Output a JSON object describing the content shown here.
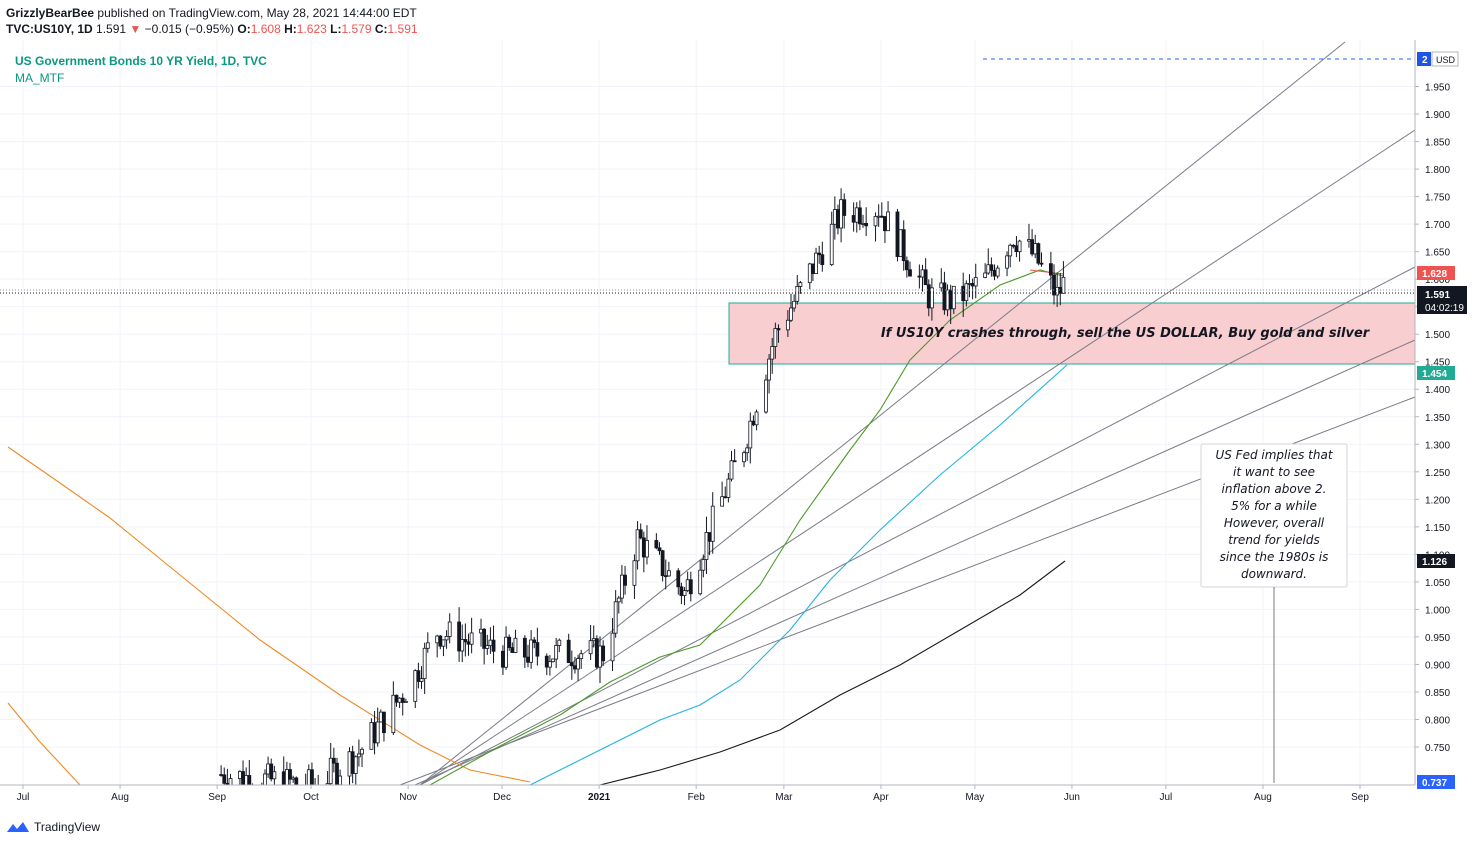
{
  "header": {
    "author": "GrizzlyBearBee",
    "published": "published on TradingView.com, May 28, 2021 14:44:00 EDT",
    "symbol": "TVC:US10Y, 1D",
    "last": "1.591",
    "change_arrow": "▼",
    "change": "−0.015 (−0.95%)",
    "o_label": "O:",
    "o": "1.608",
    "h_label": "H:",
    "h": "1.623",
    "l_label": "L:",
    "l": "1.579",
    "c_label": "C:",
    "c": "1.591"
  },
  "legend": {
    "title": "US Government Bonds 10 YR Yield, 1D, TVC",
    "indicator": "MA_MTF"
  },
  "annotations": {
    "zone_text": "If US10Y crashes through, sell the US DOLLAR, Buy gold and silver",
    "note_lines": [
      "US Fed implies that",
      "it want to see",
      "inflation above 2.",
      "5% for a while",
      "However, overall",
      "trend for yields",
      "since the 1980s is",
      "downward."
    ]
  },
  "price_tags": {
    "top_value": "2",
    "top_unit": "USD",
    "ma_red": "1.628",
    "last": "1.591",
    "countdown": "04:02:19",
    "cyan": "1.454",
    "black": "1.126",
    "bottom": "0.737"
  },
  "footer": {
    "brand": "TradingView"
  },
  "colors": {
    "up": "#131722",
    "down": "#131722",
    "zone_fill": "#f8c6c8",
    "zone_edge": "#22ab94",
    "ma_green": "#4c9a2a",
    "ma_cyan": "#22b4e3",
    "ma_black": "#1a1a1a",
    "ma_orange": "#f08a24",
    "ma_red": "#ef5350",
    "trend": "#787b86",
    "legend": "#089981"
  },
  "chart_data": {
    "type": "candlestick",
    "symbol": "TVC:US10Y",
    "ylim": [
      0.73,
      2.0
    ],
    "y_ticks": [
      0.75,
      0.8,
      0.85,
      0.9,
      0.95,
      1.0,
      1.05,
      1.1,
      1.15,
      1.2,
      1.25,
      1.3,
      1.35,
      1.4,
      1.45,
      1.5,
      1.55,
      1.6,
      1.65,
      1.7,
      1.75,
      1.8,
      1.85,
      1.9,
      1.95
    ],
    "x_ticks": [
      "Jul",
      "Aug",
      "Sep",
      "Oct",
      "Nov",
      "Dec",
      "2021",
      "Feb",
      "Mar",
      "Apr",
      "May",
      "Jun",
      "Jul",
      "Aug",
      "Sep"
    ],
    "zone": {
      "top": 1.575,
      "bottom": 1.467
    },
    "series": [
      {
        "name": "close",
        "x": [
          "2020-09-01",
          "2020-10-01",
          "2020-10-15",
          "2020-11-01",
          "2020-11-09",
          "2020-12-01",
          "2021-01-01",
          "2021-01-12",
          "2021-01-27",
          "2021-02-15",
          "2021-02-25",
          "2021-03-05",
          "2021-03-18",
          "2021-03-30",
          "2021-04-15",
          "2021-04-23",
          "2021-05-03",
          "2021-05-12",
          "2021-05-19",
          "2021-05-26",
          "2021-05-28"
        ],
        "values": [
          0.7,
          0.68,
          0.74,
          0.87,
          0.96,
          0.92,
          0.92,
          1.13,
          1.03,
          1.3,
          1.5,
          1.58,
          1.72,
          1.73,
          1.57,
          1.56,
          1.6,
          1.68,
          1.64,
          1.57,
          1.591
        ]
      }
    ]
  }
}
